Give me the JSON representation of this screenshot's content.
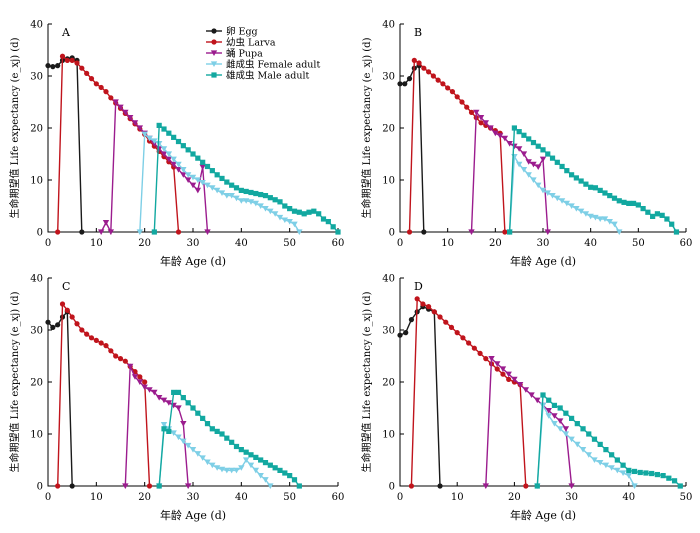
{
  "legend": [
    {
      "key": "egg",
      "label": "卵 Egg",
      "color": "#1a1a1a",
      "marker": "circle"
    },
    {
      "key": "larva",
      "label": "幼虫 Larva",
      "color": "#c0141c",
      "marker": "circle"
    },
    {
      "key": "pupa",
      "label": "蛹 Pupa",
      "color": "#9b1c8e",
      "marker": "triangle-down"
    },
    {
      "key": "female",
      "label": "雌成虫 Female adult",
      "color": "#7ecfe6",
      "marker": "triangle-down"
    },
    {
      "key": "male",
      "label": "雄成虫 Male adult",
      "color": "#12a8a0",
      "marker": "square"
    }
  ],
  "chart_data": [
    {
      "panel": "A",
      "type": "line",
      "xlabel": "年龄 Age (d)",
      "ylabel": "生命期望值 Life expectancy (e_xj) (d)",
      "xlim": [
        0,
        60
      ],
      "ylim": [
        0,
        40
      ],
      "xticks": [
        0,
        10,
        20,
        30,
        40,
        50,
        60
      ],
      "yticks": [
        0,
        10,
        20,
        30,
        40
      ],
      "series": [
        {
          "name": "卵 Egg",
          "key": "egg",
          "x": [
            0,
            1,
            2,
            3,
            4,
            5,
            6,
            7
          ],
          "y": [
            32,
            31.8,
            32,
            33,
            33.3,
            33.5,
            33,
            0
          ]
        },
        {
          "name": "幼虫 Larva",
          "key": "larva",
          "x": [
            2,
            3,
            4,
            5,
            6,
            7,
            8,
            9,
            10,
            11,
            12,
            13,
            14,
            15,
            16,
            17,
            18,
            19,
            20,
            21,
            22,
            23,
            24,
            25,
            26,
            27
          ],
          "y": [
            0,
            33.8,
            33,
            33,
            32.5,
            31.5,
            30.5,
            29.5,
            28.5,
            27.8,
            27,
            25.8,
            24.8,
            23.8,
            22.8,
            21.8,
            20.8,
            19.8,
            18.8,
            17.5,
            16.5,
            15.5,
            14.5,
            13.5,
            12.5,
            0
          ]
        },
        {
          "name": "蛹 Pupa",
          "key": "pupa",
          "x": [
            11,
            12,
            13,
            14,
            15,
            16,
            17,
            18,
            19,
            20,
            21,
            22,
            23,
            24,
            25,
            26,
            27,
            28,
            29,
            30,
            31,
            32,
            33
          ],
          "y": [
            0,
            1.8,
            0,
            25,
            24,
            23,
            22,
            21,
            20,
            19,
            18,
            17,
            16,
            15,
            14,
            13,
            12,
            11,
            10,
            9,
            8,
            12.5,
            0
          ]
        },
        {
          "name": "雌成虫 Female adult",
          "key": "female",
          "x": [
            19,
            20,
            21,
            22,
            23,
            24,
            25,
            26,
            27,
            28,
            29,
            30,
            31,
            32,
            33,
            34,
            35,
            36,
            37,
            38,
            39,
            40,
            41,
            42,
            43,
            44,
            45,
            46,
            47,
            48,
            49,
            50,
            51,
            52
          ],
          "y": [
            0,
            18.8,
            18,
            17.5,
            17,
            16,
            15,
            14,
            13,
            12,
            11,
            10.5,
            10,
            9.5,
            9,
            8.5,
            8,
            7.5,
            7,
            7,
            6.5,
            6,
            6,
            5.8,
            5.5,
            5,
            4.5,
            4,
            3.5,
            2.8,
            2.3,
            2,
            1.5,
            0
          ]
        },
        {
          "name": "雄成虫 Male adult",
          "key": "male",
          "x": [
            22,
            23,
            24,
            25,
            26,
            27,
            28,
            29,
            30,
            31,
            32,
            33,
            34,
            35,
            36,
            37,
            38,
            39,
            40,
            41,
            42,
            43,
            44,
            45,
            46,
            47,
            48,
            49,
            50,
            51,
            52,
            53,
            54,
            55,
            56,
            57,
            58,
            59,
            60
          ],
          "y": [
            0,
            20.5,
            19.8,
            19,
            18.2,
            17.4,
            16.6,
            15.8,
            15,
            14.2,
            13.4,
            12.6,
            11.8,
            11,
            10.3,
            9.6,
            9,
            8.5,
            8,
            7.8,
            7.6,
            7.4,
            7.2,
            7,
            6.6,
            6.2,
            5.8,
            5,
            4.5,
            4,
            3.8,
            3.5,
            3.8,
            4,
            3.5,
            2.5,
            2,
            1,
            0
          ]
        }
      ]
    },
    {
      "panel": "B",
      "type": "line",
      "xlabel": "年龄 Age (d)",
      "ylabel": "生命期望值 Life expectancy (e_xj) (d)",
      "xlim": [
        0,
        60
      ],
      "ylim": [
        0,
        40
      ],
      "xticks": [
        0,
        10,
        20,
        30,
        40,
        50,
        60
      ],
      "yticks": [
        0,
        10,
        20,
        30,
        40
      ],
      "series": [
        {
          "name": "卵 Egg",
          "key": "egg",
          "x": [
            0,
            1,
            2,
            3,
            4,
            5
          ],
          "y": [
            28.5,
            28.5,
            29.5,
            31.5,
            32,
            0
          ]
        },
        {
          "name": "幼虫 Larva",
          "key": "larva",
          "x": [
            2,
            3,
            4,
            5,
            6,
            7,
            8,
            9,
            10,
            11,
            12,
            13,
            14,
            15,
            16,
            17,
            18,
            19,
            20,
            21,
            22
          ],
          "y": [
            0,
            33,
            32.5,
            31.5,
            30.8,
            30,
            29.2,
            28.5,
            27.7,
            27,
            26,
            25,
            24,
            23,
            22,
            21,
            20.5,
            20,
            19.5,
            19,
            0
          ]
        },
        {
          "name": "蛹 Pupa",
          "key": "pupa",
          "x": [
            15,
            16,
            17,
            18,
            19,
            20,
            21,
            22,
            23,
            24,
            25,
            26,
            27,
            28,
            29,
            30,
            31
          ],
          "y": [
            0,
            23,
            22,
            21,
            20,
            19,
            18.5,
            18,
            17,
            16.5,
            16,
            15,
            13.5,
            13,
            12.5,
            14,
            0
          ]
        },
        {
          "name": "雌成虫 Female adult",
          "key": "female",
          "x": [
            23,
            24,
            25,
            26,
            27,
            28,
            29,
            30,
            31,
            32,
            33,
            34,
            35,
            36,
            37,
            38,
            39,
            40,
            41,
            42,
            43,
            44,
            45,
            46
          ],
          "y": [
            0,
            14.5,
            13,
            12,
            11,
            10,
            9,
            8,
            7.5,
            7,
            6.5,
            6,
            5.5,
            5,
            4.5,
            4,
            3.5,
            3,
            2.8,
            2.5,
            2.5,
            2,
            1.5,
            0
          ]
        },
        {
          "name": "雄成虫 Male adult",
          "key": "male",
          "x": [
            23,
            24,
            25,
            26,
            27,
            28,
            29,
            30,
            31,
            32,
            33,
            34,
            35,
            36,
            37,
            38,
            39,
            40,
            41,
            42,
            43,
            44,
            45,
            46,
            47,
            48,
            49,
            50,
            51,
            52,
            53,
            54,
            55,
            56,
            57,
            58
          ],
          "y": [
            0,
            20,
            19.3,
            18.6,
            17.9,
            17.2,
            16.5,
            15.8,
            15,
            14.2,
            13.4,
            12.6,
            11.8,
            11,
            10.4,
            9.8,
            9.2,
            8.6,
            8.5,
            8,
            7.5,
            7,
            6.5,
            6,
            5.7,
            5.5,
            5.5,
            5.2,
            4.5,
            3.8,
            3,
            3.5,
            3.2,
            2.5,
            1.5,
            0
          ]
        }
      ]
    },
    {
      "panel": "C",
      "type": "line",
      "xlabel": "年龄 Age (d)",
      "ylabel": "生命期望值 Life expectancy (e_xj) (d)",
      "xlim": [
        0,
        60
      ],
      "ylim": [
        0,
        40
      ],
      "xticks": [
        0,
        10,
        20,
        30,
        40,
        50,
        60
      ],
      "yticks": [
        0,
        10,
        20,
        30,
        40
      ],
      "series": [
        {
          "name": "卵 Egg",
          "key": "egg",
          "x": [
            0,
            1,
            2,
            3,
            4,
            5
          ],
          "y": [
            31.5,
            30.5,
            31,
            32.5,
            33.5,
            0
          ]
        },
        {
          "name": "幼虫 Larva",
          "key": "larva",
          "x": [
            2,
            3,
            4,
            5,
            6,
            7,
            8,
            9,
            10,
            11,
            12,
            13,
            14,
            15,
            16,
            17,
            18,
            19,
            20,
            21
          ],
          "y": [
            0,
            35,
            33.8,
            32.5,
            31.2,
            30,
            29.2,
            28.5,
            28,
            27.5,
            27,
            26,
            25,
            24.5,
            24,
            23,
            22,
            21,
            20,
            0
          ]
        },
        {
          "name": "蛹 Pupa",
          "key": "pupa",
          "x": [
            16,
            17,
            18,
            19,
            20,
            21,
            22,
            23,
            24,
            25,
            26,
            27,
            28,
            29
          ],
          "y": [
            0,
            23,
            21,
            20,
            19,
            18.5,
            18,
            17,
            16.5,
            16,
            15.5,
            15,
            12,
            0
          ]
        },
        {
          "name": "雌成虫 Female adult",
          "key": "female",
          "x": [
            23,
            24,
            25,
            26,
            27,
            28,
            29,
            30,
            31,
            32,
            33,
            34,
            35,
            36,
            37,
            38,
            39,
            40,
            41,
            42,
            43,
            44,
            45,
            46
          ],
          "y": [
            0,
            11.8,
            11,
            10.2,
            9.4,
            8.6,
            7.8,
            7,
            6.2,
            5.4,
            4.6,
            4,
            3.5,
            3.2,
            3,
            3,
            3,
            3.5,
            5,
            4,
            3,
            2,
            1.2,
            0
          ]
        },
        {
          "name": "雄成虫 Male adult",
          "key": "male",
          "x": [
            23,
            24,
            25,
            26,
            27,
            28,
            29,
            30,
            31,
            32,
            33,
            34,
            35,
            36,
            37,
            38,
            39,
            40,
            41,
            42,
            43,
            44,
            45,
            46,
            47,
            48,
            49,
            50,
            51,
            52
          ],
          "y": [
            0,
            11,
            10.5,
            18,
            18,
            17,
            16,
            15,
            14,
            13,
            12,
            11,
            10.5,
            10,
            9.2,
            8.4,
            7.6,
            7,
            6.5,
            6,
            5.5,
            5,
            4.5,
            4,
            3.5,
            3,
            2.5,
            2,
            1.2,
            0
          ]
        }
      ]
    },
    {
      "panel": "D",
      "type": "line",
      "xlabel": "年龄 Age (d)",
      "ylabel": "生命期望值 Life expectancy (e_xj) (d)",
      "xlim": [
        0,
        50
      ],
      "ylim": [
        0,
        40
      ],
      "xticks": [
        0,
        10,
        20,
        30,
        40,
        50
      ],
      "yticks": [
        0,
        10,
        20,
        30,
        40
      ],
      "series": [
        {
          "name": "卵 Egg",
          "key": "egg",
          "x": [
            0,
            1,
            2,
            3,
            4,
            5,
            6,
            7
          ],
          "y": [
            29,
            29.5,
            32,
            33.5,
            34.5,
            34,
            33.5,
            0
          ]
        },
        {
          "name": "幼虫 Larva",
          "key": "larva",
          "x": [
            2,
            3,
            4,
            5,
            6,
            7,
            8,
            9,
            10,
            11,
            12,
            13,
            14,
            15,
            16,
            17,
            18,
            19,
            20,
            21,
            22
          ],
          "y": [
            0,
            36,
            35,
            34.5,
            33.5,
            32.5,
            31.5,
            30.5,
            29.5,
            28.5,
            27.5,
            26.5,
            25.5,
            24.5,
            23.5,
            22.5,
            21.5,
            20.5,
            20,
            19.5,
            0
          ]
        },
        {
          "name": "蛹 Pupa",
          "key": "pupa",
          "x": [
            15,
            16,
            17,
            18,
            19,
            20,
            21,
            22,
            23,
            24,
            25,
            26,
            27,
            28,
            29,
            30
          ],
          "y": [
            0,
            24.5,
            23.5,
            22.5,
            21.5,
            20.5,
            19.5,
            18.5,
            17.5,
            16.5,
            15.5,
            14.5,
            13.5,
            12.5,
            11,
            0
          ]
        },
        {
          "name": "雌成虫 Female adult",
          "key": "female",
          "x": [
            24,
            25,
            26,
            27,
            28,
            29,
            30,
            31,
            32,
            33,
            34,
            35,
            36,
            37,
            38,
            39,
            40,
            41
          ],
          "y": [
            0,
            15.5,
            13.5,
            12,
            11,
            10,
            9,
            8,
            7,
            6,
            5,
            4.5,
            4,
            3.5,
            3,
            2.5,
            2,
            0
          ]
        },
        {
          "name": "雄成虫 Male adult",
          "key": "male",
          "x": [
            24,
            25,
            26,
            27,
            28,
            29,
            30,
            31,
            32,
            33,
            34,
            35,
            36,
            37,
            38,
            39,
            40,
            41,
            42,
            43,
            44,
            45,
            46,
            47,
            48,
            49
          ],
          "y": [
            0,
            17.5,
            16.5,
            15.5,
            15,
            14,
            13,
            12,
            11,
            10,
            9,
            8,
            7,
            6,
            5,
            4,
            3,
            2.8,
            2.6,
            2.5,
            2.4,
            2.2,
            2,
            1.5,
            1,
            0
          ]
        }
      ]
    }
  ]
}
